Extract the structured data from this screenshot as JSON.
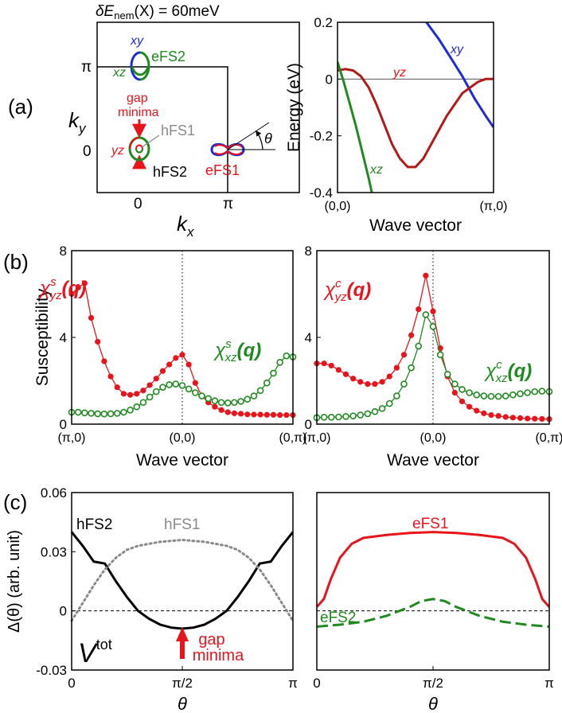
{
  "colors": {
    "red": "#e8141c",
    "darkred": "#b21a1a",
    "green": "#1f8a1f",
    "blue": "#1f2bd6",
    "gray": "#8a8a8a",
    "black": "#000000"
  },
  "panel_labels": {
    "a": "(a)",
    "b": "(b)",
    "c": "(c)"
  },
  "panel_a_left": {
    "title_prefix": "δE",
    "title_sub": "nem",
    "title_suffix": "(X) = 60meV",
    "ky_label": "k",
    "ky_sub": "y",
    "kx_label": "k",
    "kx_sub": "x",
    "tick_pi_y": "π",
    "tick_0_y": "0",
    "tick_0_x": "0",
    "tick_pi_x": "π",
    "label_xy": "xy",
    "label_xz": "xz",
    "label_eFS2": "eFS2",
    "label_gap1": "gap",
    "label_gap2": "minima",
    "label_hFS1": "hFS1",
    "label_yz": "yz",
    "label_hFS2": "hFS2",
    "label_eFS1": "eFS1",
    "label_theta": "θ"
  },
  "chart_data": [
    {
      "type": "line",
      "panel": "a-right",
      "xlabel": "Wave vector",
      "ylabel": "Energy (eV)",
      "ylim": [
        -0.4,
        0.2
      ],
      "yticks": [
        "0.2",
        "0",
        "-0.2",
        "-0.4"
      ],
      "xticks": [
        "(0,0)",
        "(π,0)"
      ],
      "series": [
        {
          "name": "xy",
          "color": "#1f2bd6",
          "x": [
            0.57,
            0.65,
            0.72,
            0.8,
            0.88,
            0.95,
            1.0
          ],
          "y": [
            0.2,
            0.14,
            0.08,
            0.01,
            -0.07,
            -0.13,
            -0.17
          ]
        },
        {
          "name": "yz",
          "color": "#b21a1a",
          "x": [
            0.0,
            0.05,
            0.1,
            0.15,
            0.2,
            0.25,
            0.3,
            0.35,
            0.4,
            0.45,
            0.5,
            0.55,
            0.6,
            0.65,
            0.7,
            0.75,
            0.8,
            0.85,
            0.9,
            0.95,
            1.0
          ],
          "y": [
            0.03,
            0.035,
            0.03,
            0.01,
            -0.03,
            -0.09,
            -0.16,
            -0.23,
            -0.28,
            -0.31,
            -0.31,
            -0.28,
            -0.23,
            -0.18,
            -0.13,
            -0.09,
            -0.05,
            -0.03,
            -0.01,
            0.0,
            0.0
          ]
        },
        {
          "name": "xz",
          "color": "#1f8a1f",
          "x": [
            0.0,
            0.04,
            0.08,
            0.12,
            0.16,
            0.2,
            0.22
          ],
          "y": [
            0.06,
            -0.01,
            -0.09,
            -0.17,
            -0.26,
            -0.35,
            -0.4
          ]
        }
      ]
    },
    {
      "type": "line",
      "panel": "b-left",
      "ylabel": "Susceptibility",
      "xlabel": "Wave vector",
      "ylim": [
        0,
        8
      ],
      "yticks": [
        "0",
        "4",
        "8"
      ],
      "xticks": [
        "(π,0)",
        "(0,0)",
        "(0,π)"
      ],
      "series": [
        {
          "name_main": "χ",
          "name_sup": "s",
          "name_sub": "yz",
          "name_tail": "(q)",
          "color": "#e8141c",
          "marker": "filled",
          "values": [
            6.0,
            6.3,
            6.5,
            4.9,
            3.8,
            2.9,
            2.2,
            1.7,
            1.4,
            1.35,
            1.4,
            1.55,
            1.8,
            2.1,
            2.45,
            2.75,
            3.05,
            3.2,
            2.75,
            1.9,
            1.3,
            1.0,
            0.8,
            0.65,
            0.55,
            0.5,
            0.48,
            0.45,
            0.44,
            0.44,
            0.43,
            0.43,
            0.42,
            0.42,
            0.42
          ]
        },
        {
          "name_main": "χ",
          "name_sup": "s",
          "name_sub": "xz",
          "name_tail": "(q)",
          "color": "#1f8a1f",
          "marker": "open",
          "values": [
            0.55,
            0.55,
            0.52,
            0.5,
            0.48,
            0.47,
            0.48,
            0.5,
            0.55,
            0.65,
            0.8,
            1.0,
            1.25,
            1.5,
            1.7,
            1.82,
            1.85,
            1.78,
            1.62,
            1.45,
            1.3,
            1.18,
            1.08,
            1.0,
            0.98,
            1.0,
            1.05,
            1.15,
            1.3,
            1.55,
            1.9,
            2.35,
            2.85,
            3.15,
            3.1
          ]
        }
      ]
    },
    {
      "type": "line",
      "panel": "b-right",
      "xlabel": "Wave vector",
      "ylim": [
        0,
        8
      ],
      "yticks": [
        "0",
        "4",
        "8"
      ],
      "xticks": [
        "(π,0)",
        "(0,0)",
        "(0,π)"
      ],
      "series": [
        {
          "name_main": "χ",
          "name_sup": "c",
          "name_sub": "yz",
          "name_tail": "(q)",
          "color": "#e8141c",
          "marker": "filled",
          "values": [
            2.8,
            2.8,
            2.7,
            2.5,
            2.3,
            2.1,
            1.95,
            1.85,
            1.85,
            1.95,
            2.2,
            2.6,
            3.2,
            4.1,
            5.3,
            6.85,
            5.2,
            3.5,
            2.2,
            1.45,
            1.05,
            0.8,
            0.62,
            0.5,
            0.42,
            0.38,
            0.33,
            0.3,
            0.28,
            0.26,
            0.25,
            0.24,
            0.23
          ]
        },
        {
          "name_main": "χ",
          "name_sup": "c",
          "name_sub": "xz",
          "name_tail": "(q)",
          "color": "#1f8a1f",
          "marker": "open",
          "values": [
            0.3,
            0.32,
            0.32,
            0.33,
            0.35,
            0.38,
            0.42,
            0.48,
            0.58,
            0.72,
            0.95,
            1.3,
            1.85,
            2.6,
            3.6,
            5.05,
            4.5,
            3.2,
            2.3,
            1.85,
            1.6,
            1.45,
            1.35,
            1.3,
            1.28,
            1.28,
            1.3,
            1.35,
            1.4,
            1.45,
            1.5,
            1.52,
            1.5
          ]
        }
      ]
    },
    {
      "type": "line",
      "panel": "c-left",
      "ylabel": "Δ(θ) (arb. unit)",
      "xlabel": "θ",
      "ylim": [
        -0.03,
        0.06
      ],
      "yticks": [
        "0.06",
        "0.03",
        "0",
        "-0.03"
      ],
      "xticks": [
        "0",
        "π/2",
        "π"
      ],
      "series": [
        {
          "name": "hFS2",
          "color": "#000000",
          "style": "solid",
          "x": [
            0.0,
            0.05,
            0.1,
            0.15,
            0.2,
            0.25,
            0.3,
            0.35,
            0.4,
            0.45,
            0.5,
            0.55,
            0.6,
            0.65,
            0.7,
            0.75,
            0.8,
            0.85,
            0.9,
            0.95,
            1.0
          ],
          "y": [
            0.04,
            0.033,
            0.025,
            0.024,
            0.015,
            0.007,
            0.0,
            -0.004,
            -0.007,
            -0.0085,
            -0.009,
            -0.0085,
            -0.007,
            -0.004,
            0.0,
            0.007,
            0.015,
            0.024,
            0.025,
            0.033,
            0.04
          ]
        },
        {
          "name": "hFS1",
          "color": "#8a8a8a",
          "style": "dotted",
          "x": [
            0.0,
            0.05,
            0.1,
            0.15,
            0.2,
            0.25,
            0.3,
            0.35,
            0.4,
            0.45,
            0.5,
            0.55,
            0.6,
            0.65,
            0.7,
            0.75,
            0.8,
            0.85,
            0.9,
            0.95,
            1.0
          ],
          "y": [
            -0.005,
            0.004,
            0.013,
            0.021,
            0.027,
            0.031,
            0.033,
            0.034,
            0.035,
            0.0355,
            0.036,
            0.0355,
            0.035,
            0.034,
            0.033,
            0.031,
            0.027,
            0.021,
            0.013,
            0.004,
            -0.005
          ]
        }
      ],
      "annotations": {
        "hFS2": "hFS2",
        "hFS1": "hFS1",
        "vtot_main": "V",
        "vtot_sup": "tot",
        "gap1": "gap",
        "gap2": "minima"
      }
    },
    {
      "type": "line",
      "panel": "c-right",
      "xlabel": "θ",
      "ylim": [
        -0.03,
        0.06
      ],
      "xticks": [
        "0",
        "π/2",
        "π"
      ],
      "series": [
        {
          "name": "eFS1",
          "color": "#e8141c",
          "style": "solid",
          "x": [
            0.0,
            0.03,
            0.06,
            0.1,
            0.15,
            0.2,
            0.3,
            0.4,
            0.5,
            0.6,
            0.7,
            0.8,
            0.85,
            0.9,
            0.94,
            0.97,
            1.0
          ],
          "y": [
            0.002,
            0.006,
            0.016,
            0.027,
            0.034,
            0.037,
            0.0385,
            0.0395,
            0.04,
            0.0395,
            0.0385,
            0.037,
            0.034,
            0.027,
            0.016,
            0.006,
            0.002
          ]
        },
        {
          "name": "eFS2",
          "color": "#1f8a1f",
          "style": "dashed",
          "x": [
            0.0,
            0.1,
            0.2,
            0.3,
            0.4,
            0.45,
            0.5,
            0.55,
            0.6,
            0.7,
            0.8,
            0.9,
            1.0
          ],
          "y": [
            -0.008,
            -0.007,
            -0.0055,
            -0.0025,
            0.002,
            0.005,
            0.006,
            0.005,
            0.002,
            -0.0025,
            -0.0055,
            -0.007,
            -0.008
          ]
        }
      ],
      "annotations": {
        "eFS1": "eFS1",
        "eFS2": "eFS2"
      }
    }
  ]
}
